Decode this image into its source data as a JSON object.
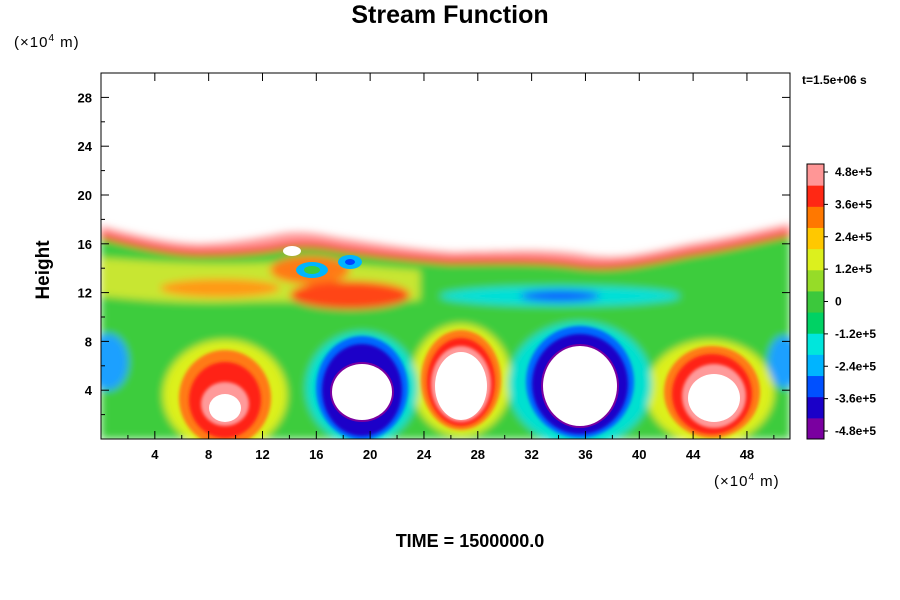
{
  "chart_data": {
    "type": "heatmap",
    "title": "Stream Function",
    "ylabel": "Height",
    "y_unit": "(×10⁴ m)",
    "x_unit": "(×10⁴ m)",
    "time_stamp": "t=1.5e+06 s",
    "footer": "TIME = 1500000.0",
    "xlim": [
      0,
      51.2
    ],
    "ylim": [
      0,
      30
    ],
    "x_ticks": [
      "4",
      "8",
      "12",
      "16",
      "20",
      "24",
      "28",
      "32",
      "36",
      "40",
      "44",
      "48"
    ],
    "y_ticks": [
      "4",
      "8",
      "12",
      "16",
      "20",
      "24",
      "28"
    ],
    "colorbar": {
      "range": [
        -480000,
        480000
      ],
      "tick_labels": [
        "4.8e+5",
        "3.6e+5",
        "2.4e+5",
        "1.2e+5",
        "0",
        "-1.2e+5",
        "-2.4e+5",
        "-3.6e+5",
        "-4.8e+5"
      ],
      "colors": [
        "#7a00a0",
        "#1a00c8",
        "#0050ff",
        "#00b4ff",
        "#00e6dc",
        "#00d264",
        "#3cc83c",
        "#96dc28",
        "#dcf01e",
        "#ffc800",
        "#ff7800",
        "#ff2814",
        "#ff9696"
      ]
    },
    "features": [
      {
        "label": "positive cell",
        "x": 9,
        "y": 4,
        "rx": 3.3,
        "ry": 4.8,
        "value": 480000
      },
      {
        "label": "negative cell",
        "x": 20,
        "y": 4.5,
        "rx": 3.6,
        "ry": 4.8,
        "value": -480000
      },
      {
        "label": "positive cell",
        "x": 26.5,
        "y": 5,
        "rx": 3.2,
        "ry": 4.4,
        "value": 480000
      },
      {
        "label": "negative cell",
        "x": 35,
        "y": 5,
        "rx": 4.6,
        "ry": 5.4,
        "value": -480000
      },
      {
        "label": "positive cell",
        "x": 45,
        "y": 4,
        "rx": 4.2,
        "ry": 4.6,
        "value": 480000
      },
      {
        "label": "upper band",
        "y": 16,
        "value": 360000
      }
    ]
  }
}
